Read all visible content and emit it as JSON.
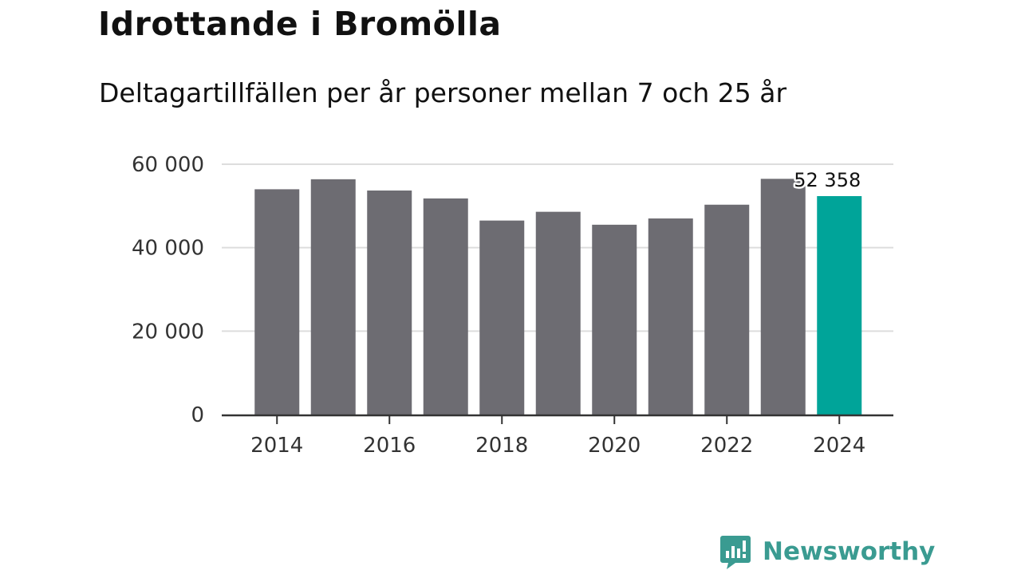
{
  "title": "Idrottande i Bromölla",
  "subtitle": "Deltagartillfällen per år personer mellan 7 och 25 år",
  "brand": {
    "name": "Newsworthy",
    "color": "#3a9b91"
  },
  "colors": {
    "bar": "#6d6c72",
    "highlight": "#00a499",
    "grid": "#dddddd",
    "axis": "#333333"
  },
  "chart_data": {
    "type": "bar",
    "categories": [
      "2014",
      "2015",
      "2016",
      "2017",
      "2018",
      "2019",
      "2020",
      "2021",
      "2022",
      "2023",
      "2024"
    ],
    "values": [
      54000,
      56400,
      53700,
      51800,
      46500,
      48600,
      45500,
      47000,
      50300,
      56500,
      52358
    ],
    "highlight_index": 10,
    "data_labels": [
      {
        "index": 10,
        "text": "52 358"
      }
    ],
    "x_tick_labels": [
      "2014",
      "2016",
      "2018",
      "2020",
      "2022",
      "2024"
    ],
    "y_tick_values": [
      0,
      20000,
      40000,
      60000
    ],
    "y_tick_labels": [
      "0",
      "20 000",
      "40 000",
      "60 000"
    ],
    "ylim": [
      0,
      60000
    ],
    "grid": true,
    "legend": "none"
  }
}
